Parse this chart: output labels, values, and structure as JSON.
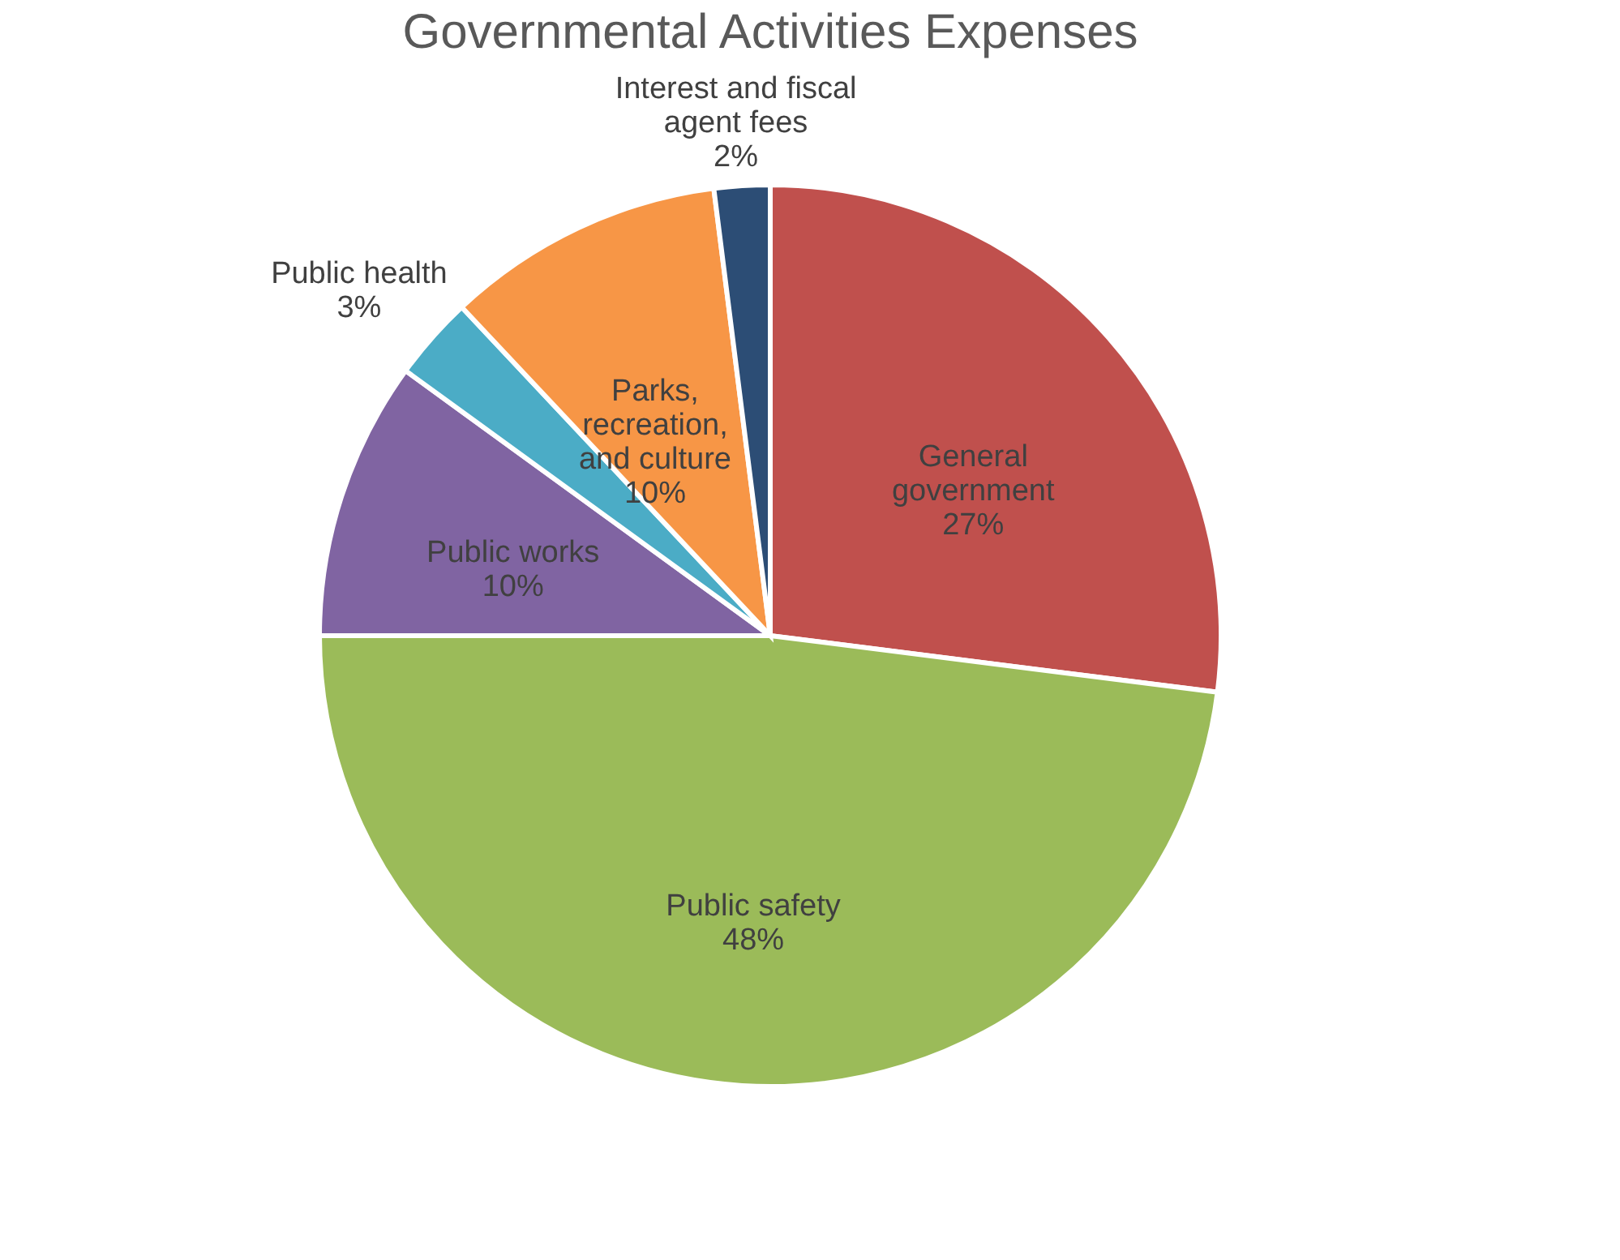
{
  "chart_data": {
    "type": "pie",
    "title": "Governmental Activities Expenses",
    "categories": [
      "General government",
      "Public safety",
      "Public works",
      "Public health",
      "Parks, recreation, and culture",
      "Interest and fiscal agent fees"
    ],
    "values": [
      27,
      48,
      10,
      3,
      10,
      2
    ],
    "colors": [
      "#c0504d",
      "#9bbb59",
      "#8064a2",
      "#4bacc6",
      "#f79646",
      "#2c4d75"
    ],
    "value_labels": [
      "27%",
      "48%",
      "10%",
      "3%",
      "10%",
      "2%"
    ],
    "legend": false
  }
}
